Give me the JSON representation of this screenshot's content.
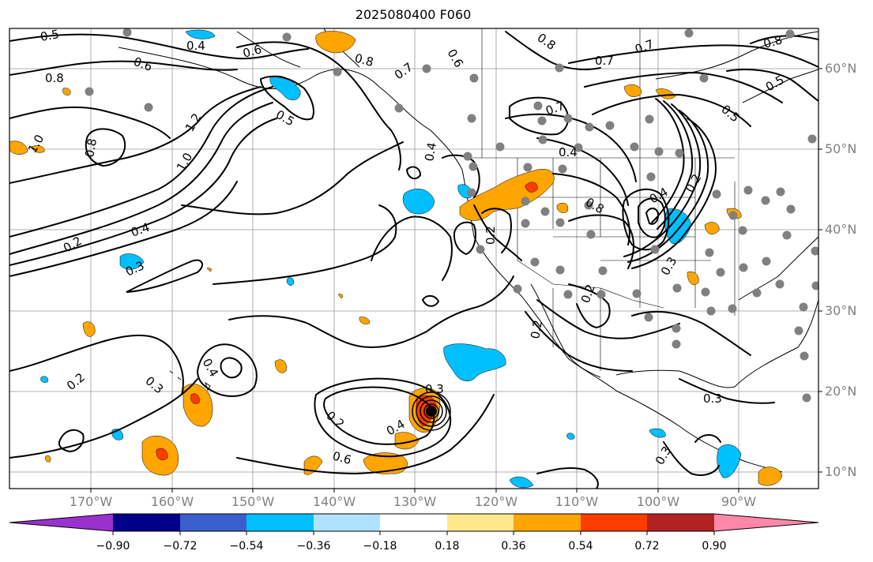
{
  "title": "2025080400 F060",
  "latitude_labels": [
    "60°N",
    "50°N",
    "40°N",
    "30°N",
    "20°N",
    "10°N"
  ],
  "longitude_labels": [
    "170°W",
    "160°W",
    "150°W",
    "140°W",
    "130°W",
    "120°W",
    "110°W",
    "100°W",
    "90°W"
  ],
  "contour_labels": [
    "0.5",
    "0.4",
    "0.6",
    "0.8",
    "0.6",
    "0.8",
    "0.6",
    "0.7",
    "0.8",
    "0.5",
    "0.7",
    "0.8",
    "0.7",
    "1.0",
    "0.8",
    "1.2",
    "1.0",
    "0.7",
    "0.4",
    "0.4",
    "0.2",
    "0.4",
    "0.3",
    "0.2",
    "0.5",
    "0.5",
    "0.4",
    "0.2",
    "0.3",
    "0.2",
    "0.3",
    "0.2",
    "0.4",
    "0.6",
    "0.8",
    "0.4",
    "0.2",
    "0.3",
    "0.2",
    "0.3",
    "0.3"
  ],
  "colorbar": {
    "tick_labels": [
      "−0.90",
      "−0.72",
      "−0.54",
      "−0.36",
      "−0.18",
      "0.18",
      "0.36",
      "0.54",
      "0.72",
      "0.90"
    ],
    "colors": [
      "#9932cc",
      "#00008b",
      "#3a5fcd",
      "#00bfff",
      "#b0e2ff",
      "#ffffff",
      "#ffe88c",
      "#ffa500",
      "#ff3c00",
      "#b22222",
      "#ff88aa"
    ]
  }
}
